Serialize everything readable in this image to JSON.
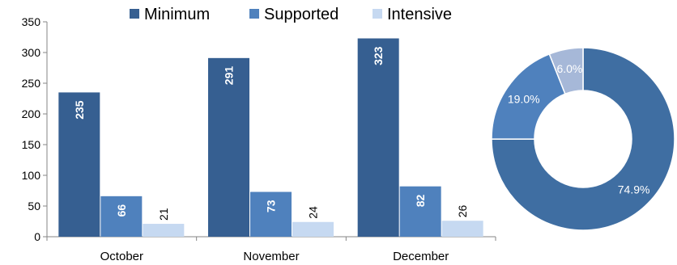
{
  "chart_data": [
    {
      "type": "bar",
      "categories": [
        "October",
        "November",
        "December"
      ],
      "series": [
        {
          "name": "Minimum",
          "values": [
            235,
            291,
            323
          ],
          "color": "#365f91"
        },
        {
          "name": "Supported",
          "values": [
            66,
            73,
            82
          ],
          "color": "#4f81bd"
        },
        {
          "name": "Intensive",
          "values": [
            21,
            24,
            26
          ],
          "color": "#c6d9f1"
        }
      ],
      "ylim": [
        0,
        350
      ],
      "yticks": [
        0,
        50,
        100,
        150,
        200,
        250,
        300,
        350
      ],
      "grid": false,
      "legend": "top"
    },
    {
      "type": "pie",
      "donut": true,
      "slices": [
        {
          "label": "74.9%",
          "value": 74.9,
          "color": "#3f6ea2"
        },
        {
          "label": "19.0%",
          "value": 19.0,
          "color": "#4f81bd"
        },
        {
          "label": "6.0%",
          "value": 6.0,
          "color": "#a6b8d8"
        }
      ]
    }
  ]
}
